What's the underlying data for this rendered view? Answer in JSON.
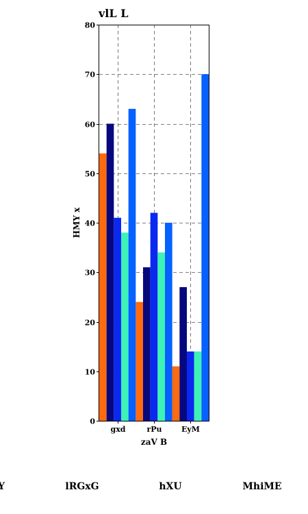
{
  "chart_data": {
    "type": "bar",
    "title": "vlL L",
    "xlabel": "zaV B",
    "ylabel": "HMY x",
    "categories": [
      "gxd",
      "rPu",
      "EyM"
    ],
    "ylim": [
      0,
      80
    ],
    "yticks": [
      0,
      10,
      20,
      30,
      40,
      50,
      60,
      70,
      80
    ],
    "grid": true,
    "legend_position": "bottom",
    "series": [
      {
        "name": "Y",
        "color": "#ff6a0f",
        "values": [
          54,
          24,
          11
        ]
      },
      {
        "name": "lRGxG",
        "color": "#07087e",
        "values": [
          60,
          31,
          27
        ]
      },
      {
        "name": "hXU",
        "color": "#0a28ef",
        "values": [
          41,
          42,
          14
        ]
      },
      {
        "name": "MhiME",
        "color": "#3df2b5",
        "values": [
          38,
          34,
          14
        ]
      },
      {
        "name": "",
        "color": "#0561ff",
        "values": [
          63,
          40,
          70
        ]
      }
    ]
  }
}
